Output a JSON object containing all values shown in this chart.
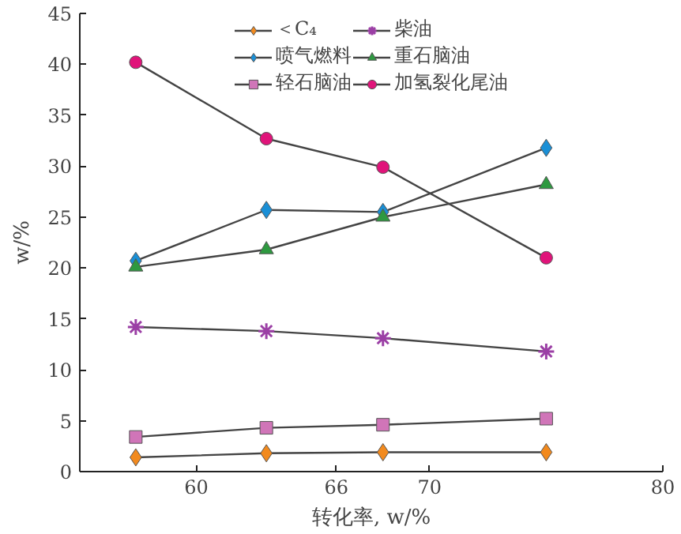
{
  "chart_data": {
    "type": "line",
    "xlabel": "转化率, w/%",
    "ylabel": "w/%",
    "x": [
      57.4,
      63,
      68,
      75
    ],
    "xlim": [
      55,
      80
    ],
    "xticks": [
      60,
      66,
      70,
      80
    ],
    "ylim": [
      0,
      45
    ],
    "yticks": [
      0,
      5,
      10,
      15,
      20,
      25,
      30,
      35,
      40,
      45
    ],
    "grid": false,
    "legend": "top",
    "series": [
      {
        "name": "＜C₄",
        "color": "#f28a1e",
        "marker": "diamond",
        "values": [
          1.4,
          1.8,
          1.9,
          1.9
        ]
      },
      {
        "name": "喷气燃料",
        "color": "#1a8fd6",
        "marker": "diamond",
        "values": [
          20.7,
          25.7,
          25.5,
          31.8
        ]
      },
      {
        "name": "轻石脑油",
        "color": "#d075b8",
        "marker": "square",
        "values": [
          3.4,
          4.3,
          4.6,
          5.2
        ]
      },
      {
        "name": "柴油",
        "color": "#9b3fa5",
        "marker": "cross",
        "values": [
          14.2,
          13.8,
          13.1,
          11.8
        ]
      },
      {
        "name": "重石脑油",
        "color": "#2e9940",
        "marker": "triangle",
        "values": [
          20.1,
          21.8,
          25.0,
          28.2
        ]
      },
      {
        "name": "加氢裂化尾油",
        "color": "#e0147a",
        "marker": "circle",
        "values": [
          40.2,
          32.7,
          29.9,
          21.0
        ]
      }
    ]
  }
}
